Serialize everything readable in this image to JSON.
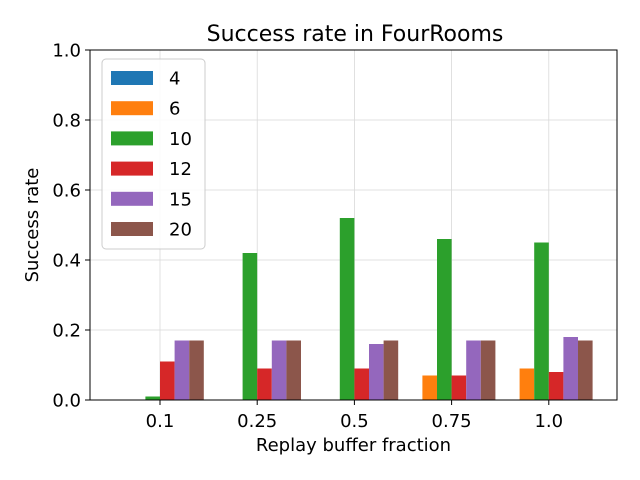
{
  "chart_data": {
    "type": "bar",
    "title": "Success rate in FourRooms",
    "xlabel": "Replay buffer fraction",
    "ylabel": "Success rate",
    "categories": [
      "0.1",
      "0.25",
      "0.5",
      "0.75",
      "1.0"
    ],
    "ylim": [
      0.0,
      1.0
    ],
    "yticks": [
      "0.0",
      "0.2",
      "0.4",
      "0.6",
      "0.8",
      "1.0"
    ],
    "grid": true,
    "legend_position": "top-left",
    "series": [
      {
        "name": "4",
        "color": "#1f77b4",
        "values": [
          0.0,
          0.0,
          0.0,
          0.0,
          0.0
        ]
      },
      {
        "name": "6",
        "color": "#ff7f0e",
        "values": [
          0.0,
          0.0,
          0.0,
          0.07,
          0.09
        ]
      },
      {
        "name": "10",
        "color": "#2ca02c",
        "values": [
          0.01,
          0.42,
          0.52,
          0.46,
          0.45
        ]
      },
      {
        "name": "12",
        "color": "#d62728",
        "values": [
          0.11,
          0.09,
          0.09,
          0.07,
          0.08
        ]
      },
      {
        "name": "15",
        "color": "#9467bd",
        "values": [
          0.17,
          0.17,
          0.16,
          0.17,
          0.18
        ]
      },
      {
        "name": "20",
        "color": "#8c564b",
        "values": [
          0.17,
          0.17,
          0.17,
          0.17,
          0.17
        ]
      }
    ]
  }
}
